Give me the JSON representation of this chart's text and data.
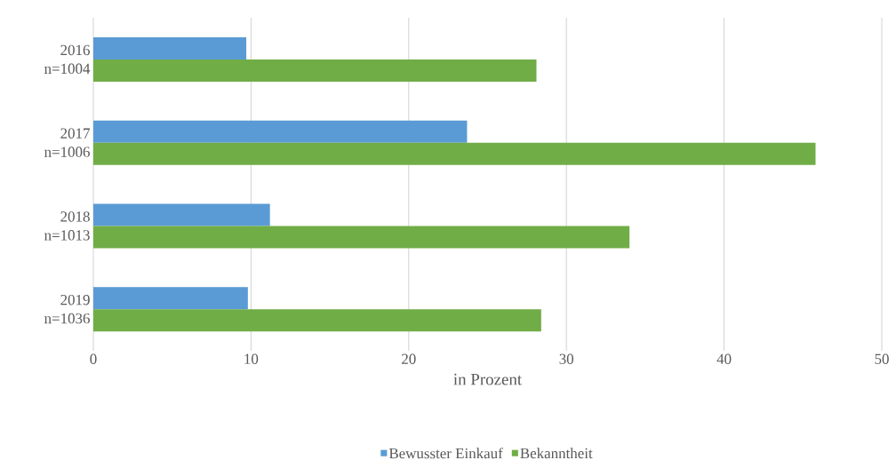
{
  "chart_data": {
    "type": "bar",
    "orientation": "horizontal",
    "xlabel": "in Prozent",
    "categories": [
      "2016 n=1004",
      "2017 n=1006",
      "2018 n=1013",
      "2019 n=1036"
    ],
    "series": [
      {
        "name": "Bewusster Einkauf",
        "color": "#5b9bd5",
        "values": [
          9.7,
          23.7,
          11.2,
          9.8
        ]
      },
      {
        "name": "Bekanntheit",
        "color": "#70ad47",
        "values": [
          28.1,
          45.8,
          34.0,
          28.4
        ]
      }
    ],
    "xlim": [
      0,
      50
    ],
    "xticks": [
      0,
      10,
      20,
      30,
      40,
      50
    ],
    "grid": "x",
    "legend": "bottom"
  }
}
